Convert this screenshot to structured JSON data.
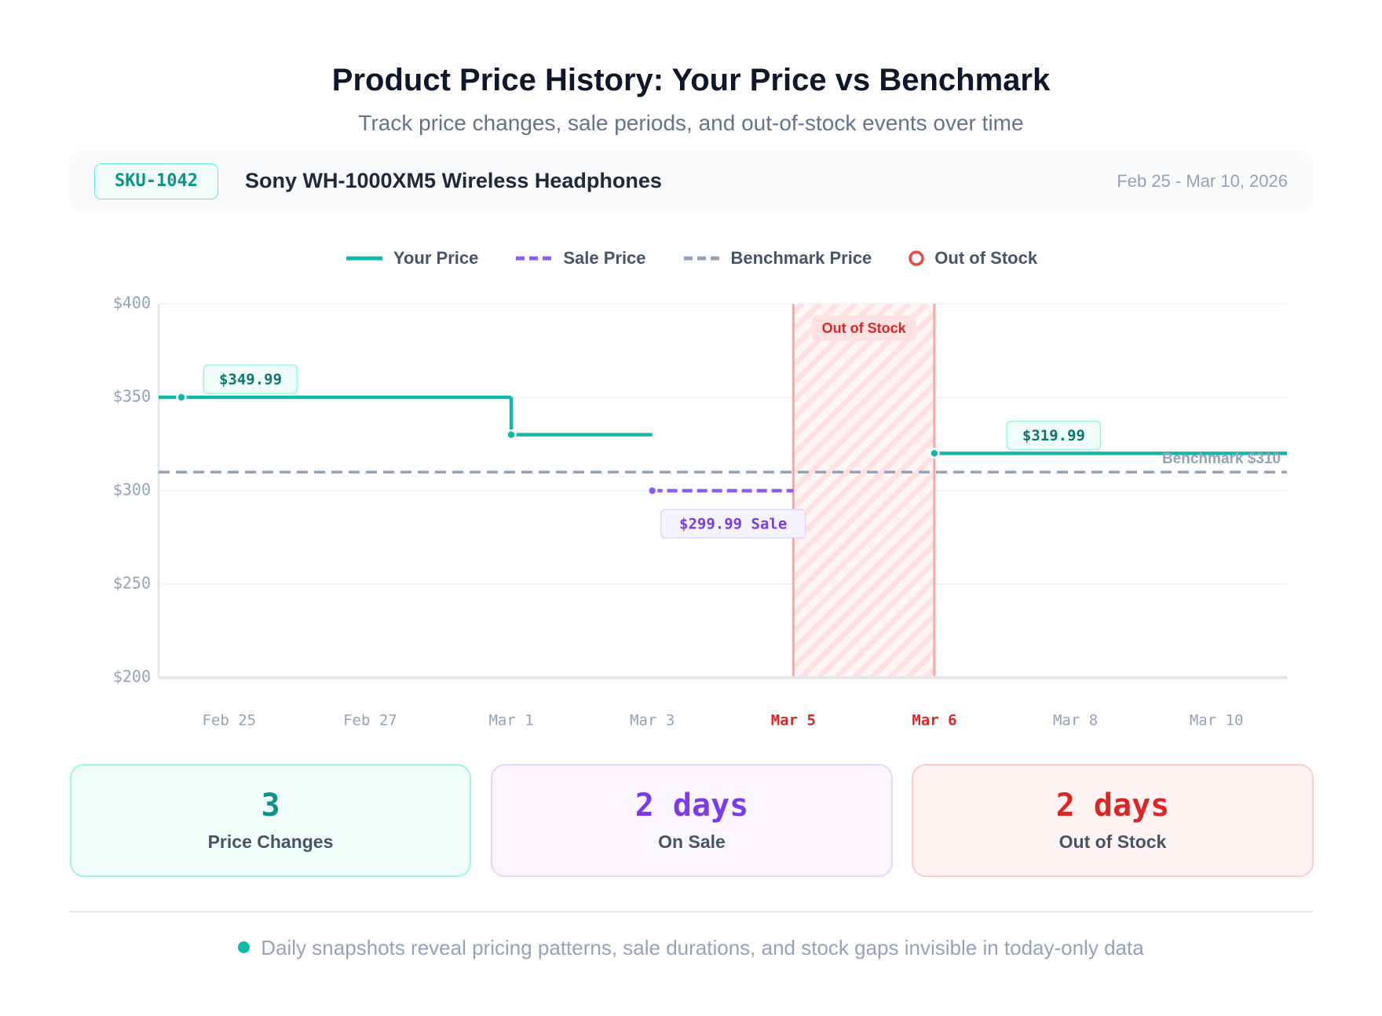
{
  "header": {
    "title": "Product Price History: Your Price vs Benchmark",
    "subtitle": "Track price changes, sale periods, and out-of-stock events over time"
  },
  "product": {
    "sku": "SKU-1042",
    "name": "Sony WH-1000XM5 Wireless Headphones",
    "date_range": "Feb 25 - Mar 10, 2026"
  },
  "chart_data": {
    "type": "step",
    "categories": [
      "Feb 25",
      "Feb 27",
      "Mar 1",
      "Mar 3",
      "Mar 5",
      "Mar 6",
      "Mar 8",
      "Mar 10"
    ],
    "series": [
      {
        "name": "Your Price",
        "color": "#14b8a6",
        "style": "solid",
        "values": [
          349.99,
          349.99,
          329.99,
          null,
          null,
          319.99,
          319.99,
          319.99
        ],
        "value_labels": [
          "$349.99",
          null,
          null,
          null,
          null,
          "$319.99",
          null,
          null
        ]
      },
      {
        "name": "Sale Price",
        "color": "#8b5cf6",
        "style": "dashed",
        "values": [
          null,
          null,
          null,
          299.99,
          null,
          null,
          null,
          null
        ],
        "value_labels": [
          null,
          null,
          null,
          "$299.99 Sale",
          null,
          null,
          null,
          null
        ]
      },
      {
        "name": "Benchmark Price",
        "color": "#94a3b8",
        "style": "dashed",
        "values": [
          310,
          310,
          310,
          310,
          310,
          310,
          310,
          310
        ],
        "value_labels": [
          null,
          null,
          null,
          null,
          null,
          null,
          null,
          "Benchmark $310"
        ]
      }
    ],
    "out_of_stock": {
      "name": "Out of Stock",
      "color": "#ef4444",
      "categories": [
        "Mar 5",
        "Mar 6"
      ],
      "annotation": "Out of Stock"
    },
    "ylim": [
      200,
      400
    ],
    "yticks": [
      {
        "value": 200,
        "label": "$200"
      },
      {
        "value": 250,
        "label": "$250"
      },
      {
        "value": 300,
        "label": "$300"
      },
      {
        "value": 350,
        "label": "$350"
      },
      {
        "value": 400,
        "label": "$400"
      }
    ],
    "grid": true
  },
  "stats": [
    {
      "value": "3",
      "label": "Price Changes"
    },
    {
      "value": "2 days",
      "label": "On Sale"
    },
    {
      "value": "2 days",
      "label": "Out of Stock"
    }
  ],
  "footer": "Daily snapshots reveal pricing patterns, sale durations, and stock gaps invisible in today-only data"
}
